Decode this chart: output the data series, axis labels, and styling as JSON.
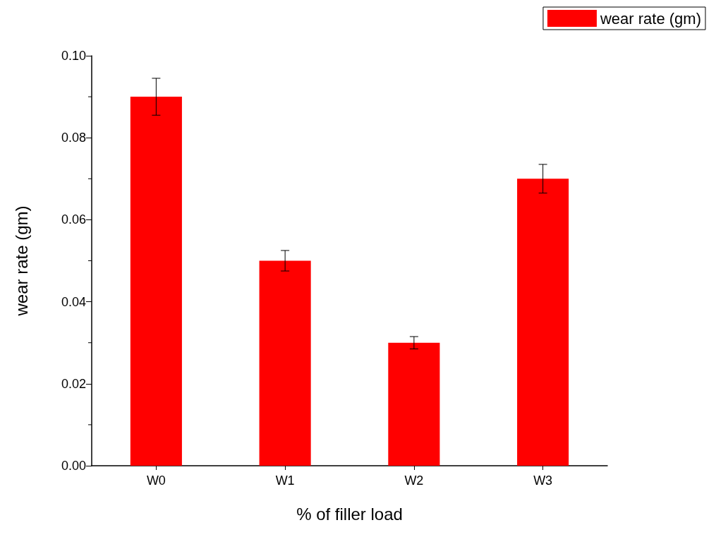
{
  "chart_data": {
    "type": "bar",
    "xlabel": "% of filler load",
    "ylabel": "wear rate (gm)",
    "categories": [
      "W0",
      "W1",
      "W2",
      "W3"
    ],
    "series": [
      {
        "name": "wear rate (gm)",
        "color": "#ff0000",
        "values": [
          0.09,
          0.05,
          0.03,
          0.07
        ],
        "errors": [
          0.0045,
          0.0025,
          0.0015,
          0.0035
        ]
      }
    ],
    "ylim": [
      0,
      0.1
    ],
    "yticks": [
      {
        "value": 0,
        "label": "0.00"
      },
      0.02,
      0.04,
      0.06,
      0.08,
      {
        "value": 0.1,
        "label": "0.10"
      }
    ],
    "grid": false,
    "legend": "top right"
  }
}
